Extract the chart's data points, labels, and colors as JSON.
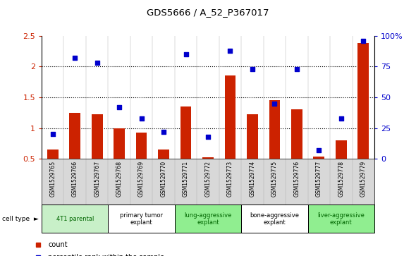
{
  "title": "GDS5666 / A_52_P367017",
  "samples": [
    "GSM1529765",
    "GSM1529766",
    "GSM1529767",
    "GSM1529768",
    "GSM1529769",
    "GSM1529770",
    "GSM1529771",
    "GSM1529772",
    "GSM1529773",
    "GSM1529774",
    "GSM1529775",
    "GSM1529776",
    "GSM1529777",
    "GSM1529778",
    "GSM1529779"
  ],
  "bar_values": [
    0.65,
    1.25,
    1.22,
    1.0,
    0.92,
    0.65,
    1.35,
    0.52,
    1.85,
    1.22,
    1.45,
    1.3,
    0.53,
    0.8,
    2.38
  ],
  "dot_values": [
    20,
    82,
    78,
    42,
    33,
    22,
    85,
    18,
    88,
    73,
    45,
    73,
    7,
    33,
    96
  ],
  "cell_types": [
    {
      "label": "4T1 parental",
      "start": 0,
      "end": 2,
      "color": "#c8f0c8"
    },
    {
      "label": "primary tumor\nexplant",
      "start": 3,
      "end": 5,
      "color": "#ffffff"
    },
    {
      "label": "lung-aggressive\nexplant",
      "start": 6,
      "end": 8,
      "color": "#90ee90"
    },
    {
      "label": "bone-aggressive\nexplant",
      "start": 9,
      "end": 11,
      "color": "#ffffff"
    },
    {
      "label": "liver-aggressive\nexplant",
      "start": 12,
      "end": 14,
      "color": "#90ee90"
    }
  ],
  "ylim_left": [
    0.5,
    2.5
  ],
  "ylim_right": [
    0,
    100
  ],
  "bar_color": "#cc2200",
  "dot_color": "#0000cc",
  "grid_values": [
    1.0,
    1.5,
    2.0
  ],
  "right_ticks": [
    0,
    25,
    50,
    75,
    100
  ],
  "right_tick_labels": [
    "0",
    "25",
    "50",
    "75",
    "100%"
  ],
  "left_tick_labels": [
    "0.5",
    "1",
    "1.5",
    "2",
    "2.5"
  ],
  "left_ticks": [
    0.5,
    1.0,
    1.5,
    2.0,
    2.5
  ],
  "bg_color": "#d8d8d8",
  "cell_type_label_color_green": "#006600",
  "cell_type_label_color_black": "#000000"
}
